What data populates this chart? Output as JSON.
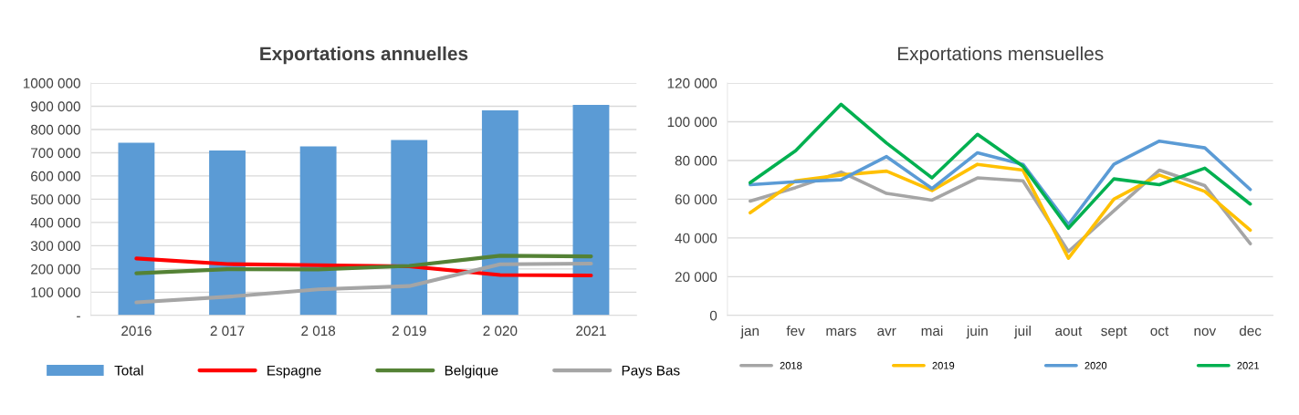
{
  "chart_data": [
    {
      "type": "bar",
      "title": "Exportations annuelles",
      "categories": [
        "2016",
        "2 017",
        "2 018",
        "2 019",
        "2 020",
        "2021"
      ],
      "series": [
        {
          "name": "Total",
          "color": "#5b9bd5",
          "values": [
            743000,
            710000,
            727000,
            755000,
            882000,
            906000
          ]
        },
        {
          "name": "Espagne",
          "type": "line",
          "color": "#ff0000",
          "values": [
            245000,
            221000,
            216000,
            211000,
            174000,
            172000
          ]
        },
        {
          "name": "Belgique",
          "type": "line",
          "color": "#548235",
          "values": [
            181000,
            199000,
            198000,
            213000,
            257000,
            254000
          ]
        },
        {
          "name": "Pays Bas",
          "type": "line",
          "color": "#a5a5a5",
          "values": [
            56000,
            80000,
            112000,
            126000,
            220000,
            223000
          ]
        }
      ],
      "ylim": [
        0,
        1000000
      ],
      "yticks": [
        {
          "value": 0,
          "label": "-"
        },
        {
          "value": 100000,
          "label": "100 000"
        },
        {
          "value": 200000,
          "label": "200 000"
        },
        {
          "value": 300000,
          "label": "300 000"
        },
        {
          "value": 400000,
          "label": "400 000"
        },
        {
          "value": 500000,
          "label": "500 000"
        },
        {
          "value": 600000,
          "label": "600 000"
        },
        {
          "value": 700000,
          "label": "700 000"
        },
        {
          "value": 800000,
          "label": "800 000"
        },
        {
          "value": 900000,
          "label": "900 000"
        },
        {
          "value": 1000000,
          "label": "1000 000"
        }
      ],
      "grid": "y",
      "legend": "bottom",
      "marker": "none",
      "line_style": "solid"
    },
    {
      "type": "line",
      "title": "Exportations mensuelles",
      "categories": [
        "jan",
        "fev",
        "mars",
        "avr",
        "mai",
        "juin",
        "juil",
        "aout",
        "sept",
        "oct",
        "nov",
        "dec"
      ],
      "series": [
        {
          "name": "2018",
          "color": "#a5a5a5",
          "values": [
            59000,
            66000,
            74000,
            63000,
            59500,
            71000,
            69500,
            33000,
            54000,
            75000,
            67000,
            37000
          ]
        },
        {
          "name": "2019",
          "color": "#ffc000",
          "values": [
            53000,
            69500,
            72500,
            74500,
            64500,
            78000,
            75000,
            29500,
            60000,
            72500,
            64000,
            44000
          ]
        },
        {
          "name": "2020",
          "color": "#5b9bd5",
          "values": [
            67500,
            69000,
            70000,
            82000,
            65500,
            84000,
            78000,
            47000,
            78000,
            90000,
            86500,
            65000
          ]
        },
        {
          "name": "2021",
          "color": "#00b050",
          "values": [
            68500,
            85000,
            109000,
            89000,
            71000,
            93500,
            77000,
            45000,
            70500,
            67500,
            76000,
            57500
          ]
        }
      ],
      "ylim": [
        0,
        120000
      ],
      "yticks": [
        0,
        {
          "value": 20000,
          "label": "20 000"
        },
        {
          "value": 40000,
          "label": "40 000"
        },
        {
          "value": 60000,
          "label": "60 000"
        },
        {
          "value": 80000,
          "label": "80 000"
        },
        {
          "value": 100000,
          "label": "100 000"
        },
        {
          "value": 120000,
          "label": "120 000"
        }
      ],
      "grid": "y",
      "legend": "bottom",
      "marker": "none",
      "line_style": "solid"
    }
  ]
}
